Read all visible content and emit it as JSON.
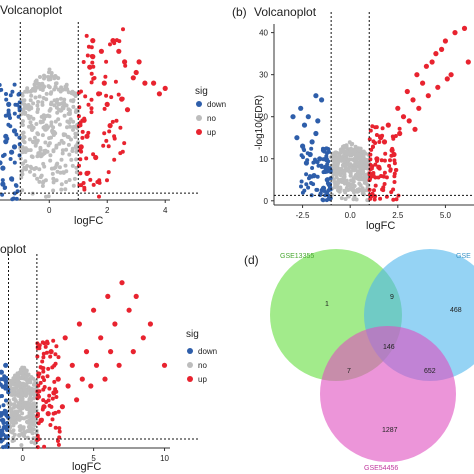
{
  "colors": {
    "down": "#2e5eaa",
    "no": "#bdbdbd",
    "up": "#e8232f"
  },
  "chart_data": [
    {
      "type": "scatter",
      "title": "Volcanoplot",
      "panel_label": "",
      "xlabel": "logFC",
      "ylabel": "",
      "x_ticks": [
        "0",
        "2",
        "4"
      ],
      "thresholds": {
        "x": [
          -1,
          1
        ],
        "y": 1.3
      },
      "legend": {
        "title": "sig",
        "entries": [
          "down",
          "no",
          "up"
        ],
        "placement": "right"
      },
      "series": [
        {
          "name": "down",
          "x": [
            -1.3,
            -1.6,
            -1.9,
            -1.2,
            -1.5,
            -1.8,
            -1.4,
            -1.7,
            -1.3,
            -2.0,
            -1.5,
            -1.2,
            -1.6,
            -1.9,
            -1.4
          ],
          "y": [
            4,
            6,
            8,
            10,
            12,
            14,
            16,
            7,
            9,
            5,
            11,
            13,
            3,
            15,
            18
          ]
        },
        {
          "name": "up",
          "x": [
            1.5,
            1.8,
            2.2,
            2.6,
            3.0,
            3.3,
            3.6,
            1.4,
            2.4,
            2.9,
            1.7,
            2.0,
            3.8,
            1.2,
            1.3,
            2.7,
            1.6,
            2.1,
            1.1,
            1.9,
            4.0,
            2.5,
            1.5,
            3.1,
            1.3
          ],
          "y": [
            30,
            28,
            30,
            26,
            24,
            22,
            22,
            25,
            28,
            23,
            20,
            18,
            20,
            15,
            12,
            17,
            8,
            14,
            10,
            22,
            21,
            19,
            27,
            26,
            5
          ]
        }
      ]
    },
    {
      "type": "scatter",
      "title": "Volcanoplot",
      "panel_label": "(b)",
      "xlabel": "logFC",
      "ylabel": "-log10(FDR)",
      "x_ticks": [
        "-2.5",
        "0.0",
        "2.5",
        "5.0"
      ],
      "y_ticks": [
        "0",
        "10",
        "20",
        "30",
        "40"
      ],
      "xlim": [
        -4,
        6.5
      ],
      "ylim": [
        -1,
        43
      ],
      "thresholds": {
        "x": [
          -1,
          1
        ],
        "y": 1.3
      },
      "series": [
        {
          "name": "down",
          "x": [
            -1.4,
            -1.8,
            -2.2,
            -2.6,
            -1.3,
            -1.6,
            -2.0,
            -2.4,
            -1.2,
            -1.5,
            -1.9,
            -2.3,
            -2.8,
            -1.7,
            -2.1,
            -1.4,
            -3.0,
            -1.8,
            -2.5,
            -1.3
          ],
          "y": [
            12,
            16,
            20,
            22,
            8,
            10,
            14,
            18,
            5,
            24,
            6,
            9,
            15,
            19,
            11,
            3,
            20,
            25,
            13,
            7
          ]
        },
        {
          "name": "up",
          "x": [
            1.6,
            2.0,
            2.5,
            3.0,
            3.5,
            4.0,
            4.5,
            5.0,
            5.5,
            6.0,
            2.2,
            2.8,
            3.3,
            3.8,
            4.3,
            4.8,
            5.3,
            1.4,
            1.8,
            3.6,
            4.1,
            4.6,
            5.1,
            6.2,
            2.6,
            3.1,
            1.2,
            1.5,
            2.3,
            3.4
          ],
          "y": [
            15,
            18,
            22,
            26,
            30,
            32,
            35,
            38,
            40,
            41,
            12,
            20,
            24,
            28,
            33,
            36,
            30,
            10,
            14,
            22,
            25,
            27,
            29,
            33,
            16,
            19,
            6,
            8,
            11,
            17
          ]
        }
      ]
    },
    {
      "type": "scatter",
      "title": "oplot",
      "panel_label": "",
      "xlabel": "logFC",
      "ylabel": "",
      "x_ticks": [
        "0",
        "5",
        "10"
      ],
      "thresholds": {
        "x": [
          -1,
          1
        ],
        "y": 1.3
      },
      "legend": {
        "title": "sig",
        "entries": [
          "down",
          "no",
          "up"
        ],
        "placement": "right"
      },
      "series": [
        {
          "name": "down",
          "x": [
            -1.3,
            -1.6,
            -1.9,
            -1.2,
            -1.5,
            -1.8,
            -1.4,
            -1.7,
            -2.0,
            -1.3,
            -1.6,
            -1.2
          ],
          "y": [
            3,
            5,
            7,
            9,
            11,
            13,
            4,
            6,
            8,
            10,
            2,
            12
          ]
        },
        {
          "name": "up",
          "x": [
            2,
            3,
            4,
            5,
            6,
            7,
            8,
            9,
            10,
            2.5,
            3.5,
            4.5,
            5.5,
            6.5,
            7.5,
            8.5,
            1.5,
            2.2,
            3.2,
            4.2,
            5.2,
            6.2,
            1.3,
            1.8,
            2.8,
            3.8,
            4.8,
            5.8,
            6.8,
            7.8
          ],
          "y": [
            14,
            16,
            18,
            20,
            22,
            24,
            22,
            18,
            12,
            10,
            12,
            14,
            16,
            18,
            20,
            16,
            6,
            8,
            9,
            10,
            12,
            14,
            4,
            5,
            6,
            7,
            9,
            10,
            12,
            14
          ]
        }
      ]
    },
    {
      "type": "venn",
      "panel_label": "(d)",
      "sets": [
        "GSE13355",
        "GSE",
        "GSE54456"
      ],
      "regions": {
        "a_only": "1",
        "a_b": "9",
        "b_only": "468",
        "a_c": "7",
        "a_b_c": "146",
        "b_c": "652",
        "c_only": "1287"
      }
    }
  ]
}
